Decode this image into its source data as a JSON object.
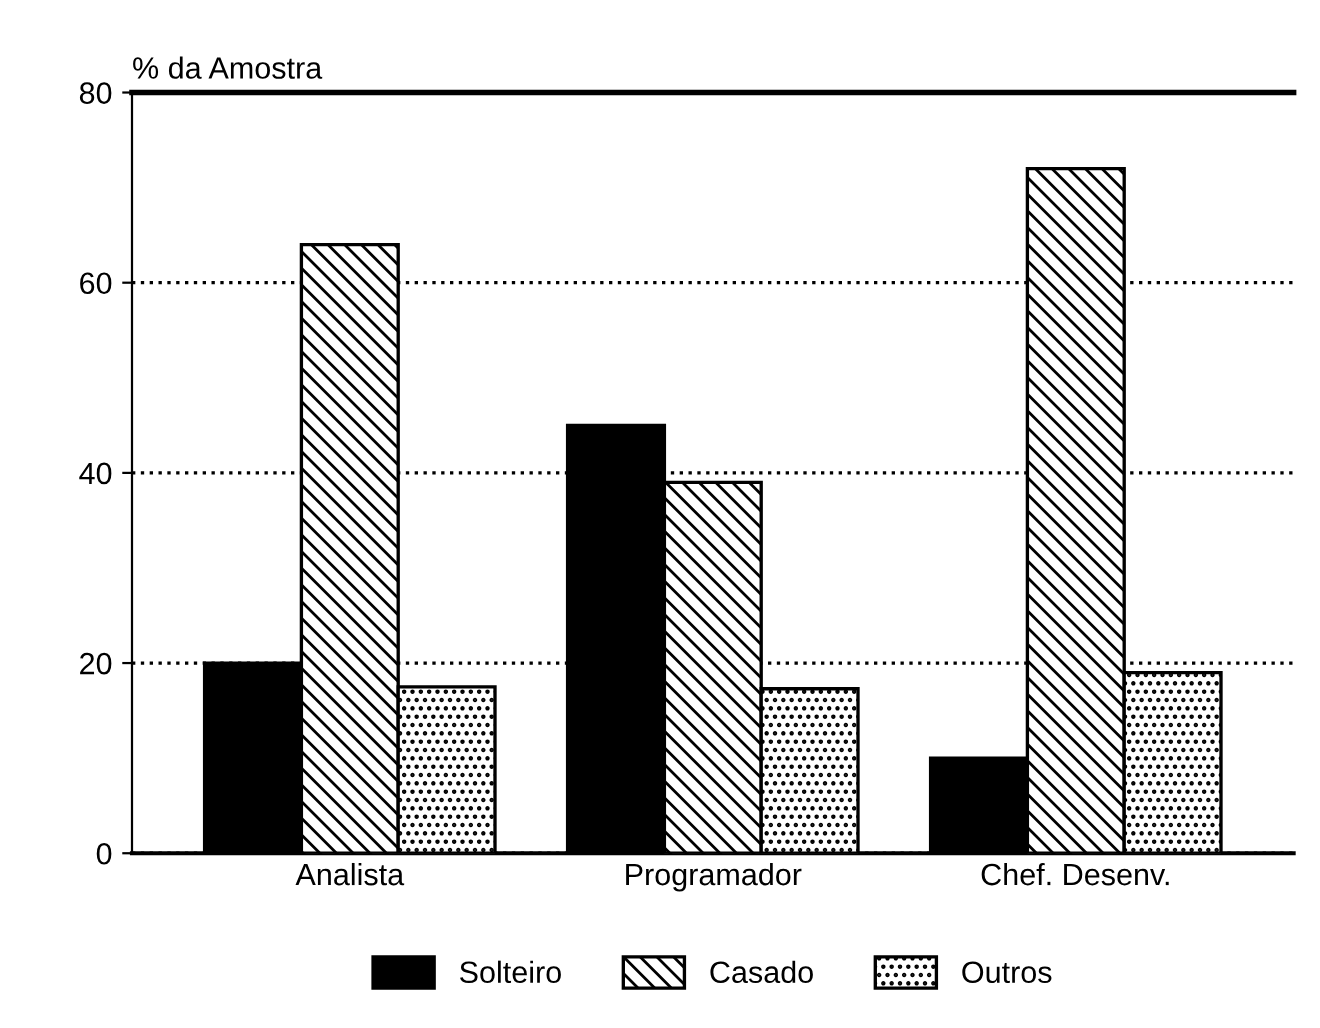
{
  "chart_data": {
    "type": "bar",
    "ylabel": "% da Amostra",
    "categories": [
      "Analista",
      "Programador",
      "Chef. Desenv."
    ],
    "series": [
      {
        "name": "Solteiro",
        "color": "#000000",
        "values": [
          20,
          45,
          10
        ]
      },
      {
        "name": "Casado",
        "color": "#000000",
        "values": [
          64,
          39,
          72
        ]
      },
      {
        "name": "Outros",
        "color": "#000000",
        "values": [
          17.5,
          17.3,
          19
        ]
      }
    ],
    "ylim": [
      0,
      80
    ],
    "yticks": [
      0,
      20,
      40,
      60,
      80
    ],
    "grid": "y",
    "legend": "bottom"
  }
}
